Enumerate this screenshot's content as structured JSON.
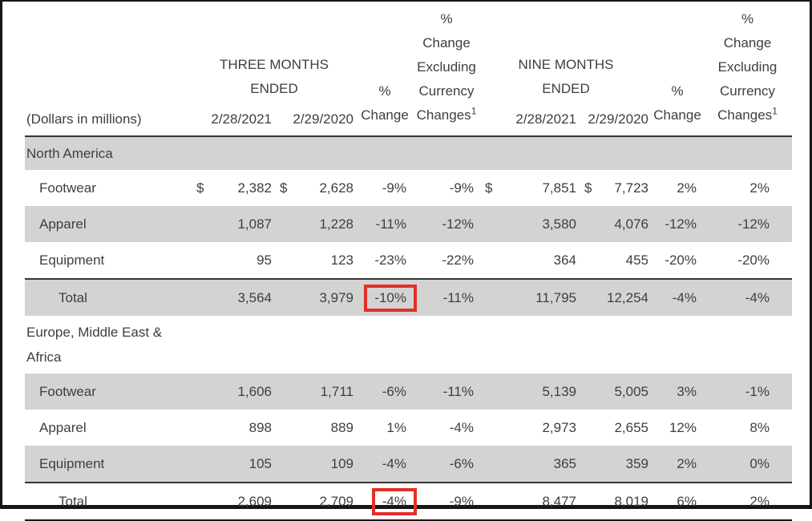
{
  "colors": {
    "accent_red": "#e23027",
    "row_shade": "#d3d3d3",
    "text": "#3e3e3e",
    "rule": "#363636"
  },
  "currency_symbol": "$",
  "header": {
    "row_label": "(Dollars in millions)",
    "groups": [
      {
        "title": "THREE MONTHS ENDED",
        "dates": [
          "2/28/2021",
          "2/29/2020"
        ]
      },
      {
        "title": "NINE MONTHS ENDED",
        "dates": [
          "2/28/2021",
          "2/29/2020"
        ]
      }
    ],
    "pct_change_lines": [
      "%",
      "Change"
    ],
    "pct_change_excl_lines": [
      "%",
      "Change",
      "Excluding",
      "Currency",
      "Changes"
    ],
    "footnote_marker": "1"
  },
  "sections": [
    {
      "name": "North America",
      "band_shaded": true,
      "rows": [
        {
          "label": "Footwear",
          "dollar_signs": true,
          "tm_2021": "2,382",
          "tm_2020": "2,628",
          "tm_pct": "-9%",
          "tm_pct_excl": "-9%",
          "nm_2021": "7,851",
          "nm_2020": "7,723",
          "nm_pct": "2%",
          "nm_pct_excl": "2%"
        },
        {
          "label": "Apparel",
          "tm_2021": "1,087",
          "tm_2020": "1,228",
          "tm_pct": "-11%",
          "tm_pct_excl": "-12%",
          "nm_2021": "3,580",
          "nm_2020": "4,076",
          "nm_pct": "-12%",
          "nm_pct_excl": "-12%"
        },
        {
          "label": "Equipment",
          "tm_2021": "95",
          "tm_2020": "123",
          "tm_pct": "-23%",
          "tm_pct_excl": "-22%",
          "nm_2021": "364",
          "nm_2020": "455",
          "nm_pct": "-20%",
          "nm_pct_excl": "-20%"
        }
      ],
      "total": {
        "label": "Total",
        "tm_2021": "3,564",
        "tm_2020": "3,979",
        "tm_pct": "-10%",
        "tm_pct_highlighted": true,
        "tm_pct_excl": "-11%",
        "nm_2021": "11,795",
        "nm_2020": "12,254",
        "nm_pct": "-4%",
        "nm_pct_excl": "-4%"
      }
    },
    {
      "name": "Europe, Middle East & Africa",
      "band_shaded": false,
      "rows": [
        {
          "label": "Footwear",
          "tm_2021": "1,606",
          "tm_2020": "1,711",
          "tm_pct": "-6%",
          "tm_pct_excl": "-11%",
          "nm_2021": "5,139",
          "nm_2020": "5,005",
          "nm_pct": "3%",
          "nm_pct_excl": "-1%"
        },
        {
          "label": "Apparel",
          "tm_2021": "898",
          "tm_2020": "889",
          "tm_pct": "1%",
          "tm_pct_excl": "-4%",
          "nm_2021": "2,973",
          "nm_2020": "2,655",
          "nm_pct": "12%",
          "nm_pct_excl": "8%"
        },
        {
          "label": "Equipment",
          "tm_2021": "105",
          "tm_2020": "109",
          "tm_pct": "-4%",
          "tm_pct_excl": "-6%",
          "nm_2021": "365",
          "nm_2020": "359",
          "nm_pct": "2%",
          "nm_pct_excl": "0%"
        }
      ],
      "total": {
        "label": "Total",
        "tm_2021": "2,609",
        "tm_2020": "2,709",
        "tm_pct": "-4%",
        "tm_pct_highlighted": true,
        "tm_pct_excl": "-9%",
        "nm_2021": "8,477",
        "nm_2020": "8,019",
        "nm_pct": "6%",
        "nm_pct_excl": "2%"
      }
    }
  ]
}
